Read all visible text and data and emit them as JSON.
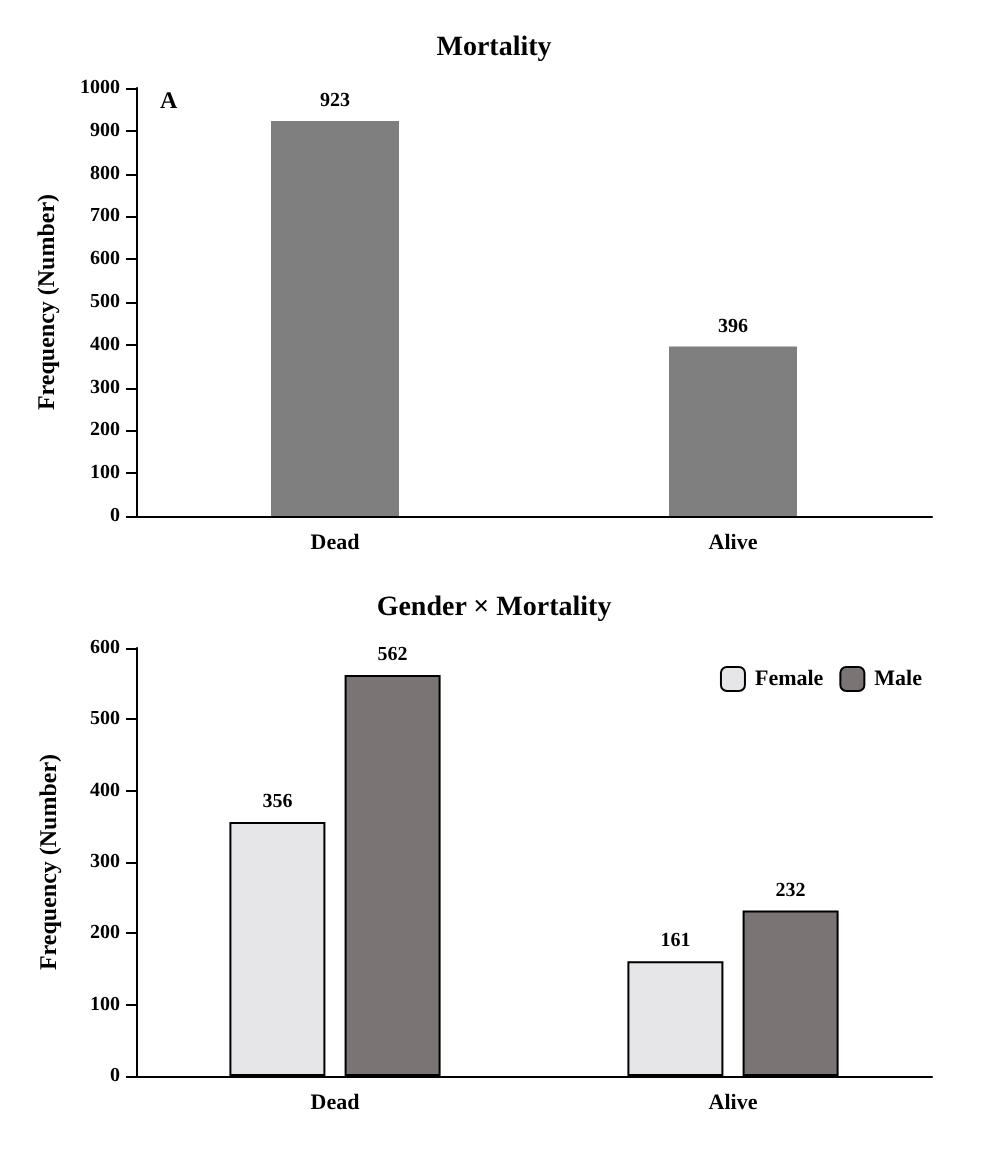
{
  "chart_data": [
    {
      "type": "bar",
      "title": "Mortality",
      "ylabel": "Frequency (Number)",
      "categories": [
        "Dead",
        "Alive"
      ],
      "values": [
        923,
        396
      ],
      "color": "#7f7f7f",
      "ylim": [
        0,
        1000
      ],
      "yticks": [
        0,
        100,
        200,
        300,
        400,
        500,
        600,
        700,
        800,
        900,
        1000
      ],
      "data_labels": true,
      "grid": false,
      "annotations": [
        "A"
      ]
    },
    {
      "type": "bar",
      "title": "Gender × Mortality",
      "ylabel": "Frequency (Number)",
      "categories": [
        "Dead",
        "Alive"
      ],
      "series": [
        {
          "name": "Female",
          "color": "#e6e6e8",
          "values": [
            356,
            161
          ]
        },
        {
          "name": "Male",
          "color": "#7a7474",
          "values": [
            562,
            232
          ]
        }
      ],
      "ylim": [
        0,
        600
      ],
      "yticks": [
        0,
        100,
        200,
        300,
        400,
        500,
        600
      ],
      "data_labels": true,
      "grid": false,
      "legend": "top right"
    }
  ]
}
